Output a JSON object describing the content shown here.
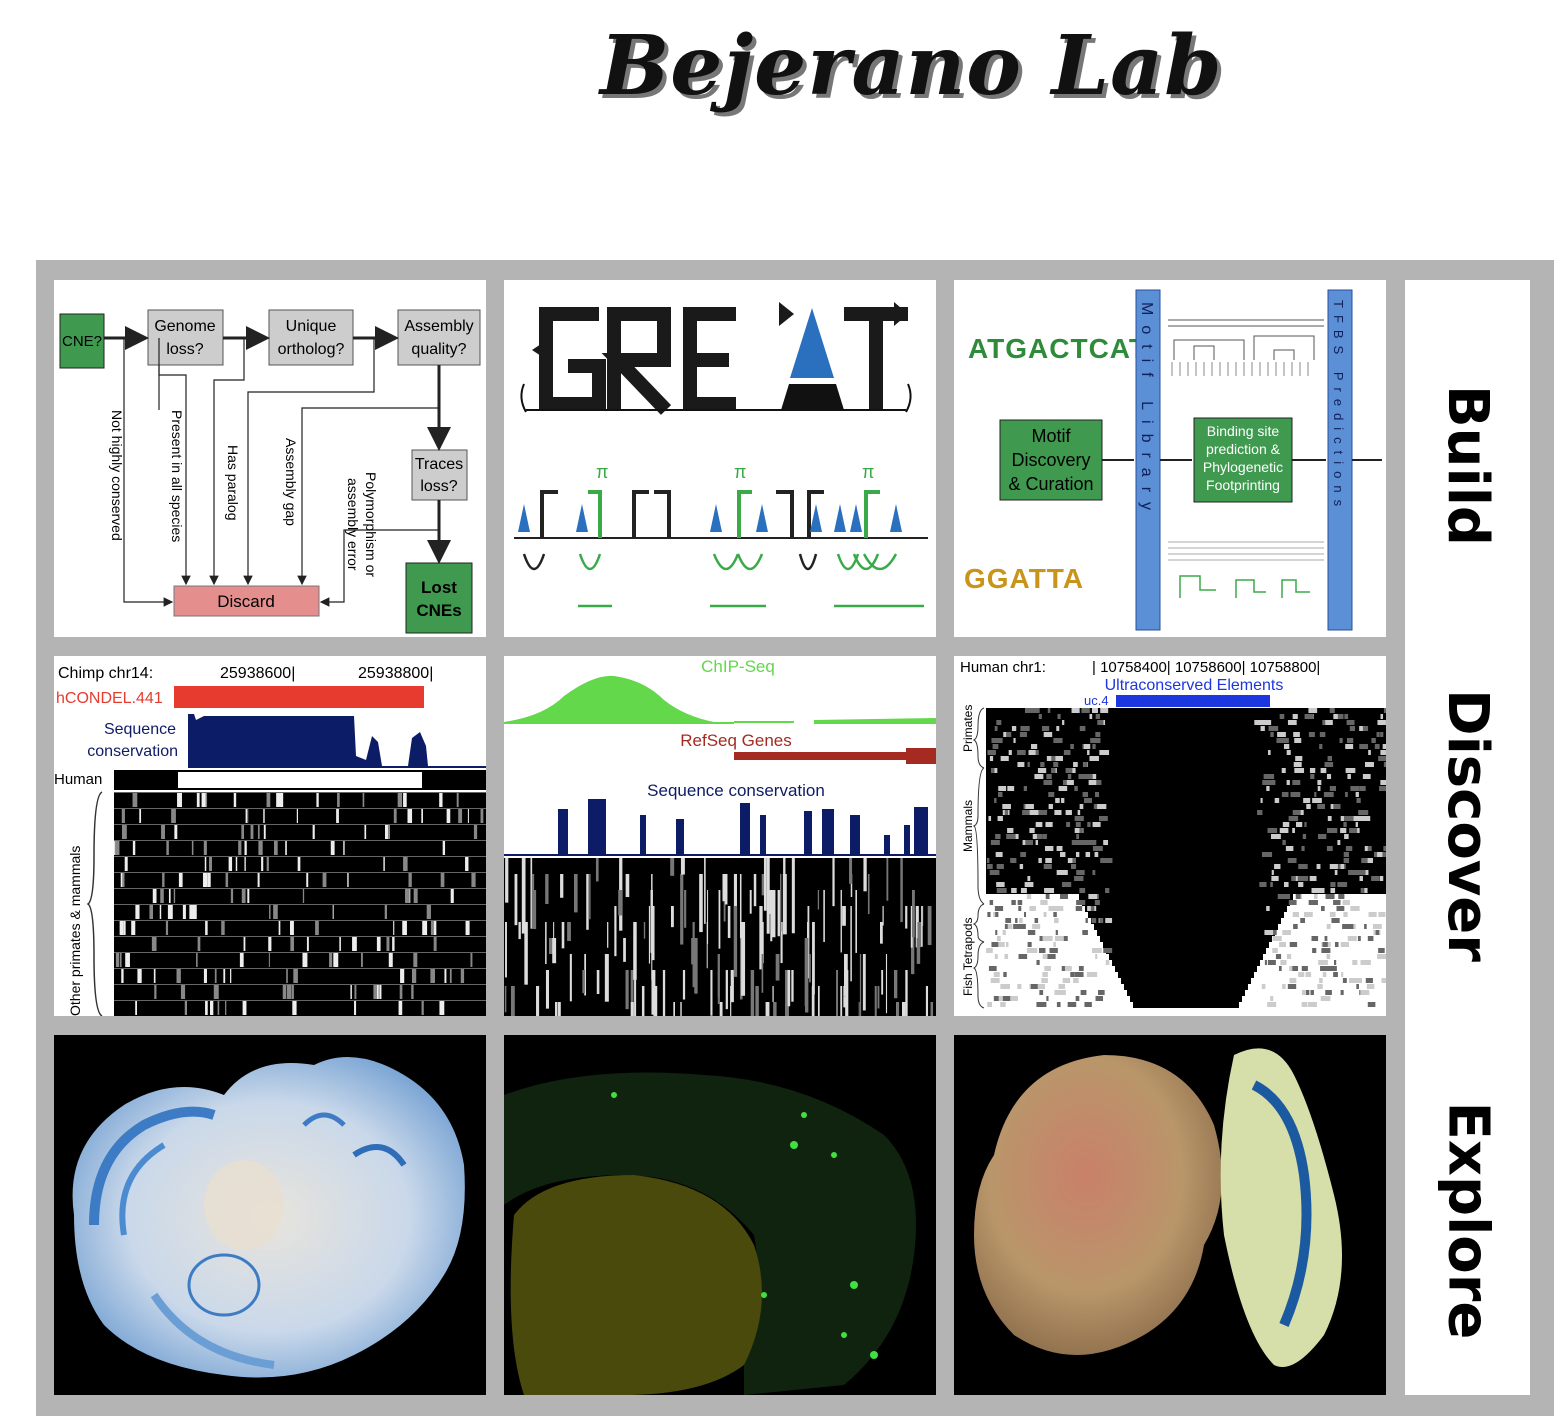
{
  "title": "Bejerano Lab",
  "sections": [
    "Build",
    "Discover",
    "Explore"
  ],
  "flowchart": {
    "cne": "CNE?",
    "genome_loss": [
      "Genome",
      "loss?"
    ],
    "unique_ortholog": [
      "Unique",
      "ortholog?"
    ],
    "assembly_quality": [
      "Assembly",
      "quality?"
    ],
    "traces_loss": [
      "Traces",
      "loss?"
    ],
    "lost_cnes": [
      "Lost",
      "CNEs"
    ],
    "discard": "Discard",
    "not_highly_conserved": "Not highly conserved",
    "present_all_species": "Present in all species",
    "has_paralog": "Has paralog",
    "assembly_gap": "Assembly gap",
    "polymorphism": [
      "Polymorphism or",
      "assembly error"
    ]
  },
  "great": {
    "pi": "π"
  },
  "motif": {
    "seq1": "ATGACTCAT",
    "seq2": "GGATTA",
    "discovery": [
      "Motif",
      "Discovery",
      "& Curation"
    ],
    "binding": [
      "Binding site",
      "prediction &",
      "Phylogenetic",
      "Footprinting"
    ],
    "library": "Motif Library",
    "tfbs": "TFBS Predictions"
  },
  "chimp": {
    "label": "Chimp chr14:",
    "pos1": "25938600|",
    "pos2": "25938800|",
    "condel": "hCONDEL.441",
    "seqcons": [
      "Sequence",
      "conservation"
    ],
    "human": "Human",
    "other": "Other primates & mammals"
  },
  "chip": {
    "chipseq": "ChIP-Seq",
    "refseq": "RefSeq Genes",
    "seqcons": "Sequence conservation"
  },
  "human": {
    "label": "Human chr1:",
    "pos": "| 10758400| 10758600| 10758800|",
    "uce": "Ultraconserved Elements",
    "uc": "uc.4",
    "primates": "Primates",
    "mammals": "Mammals",
    "fish": "Fish Tetrapods"
  },
  "colors": {
    "green_box": "#3f9a4f",
    "gray_box": "#cdcdcd",
    "pink_box": "#e58e8e",
    "blue_bar": "#5b8fd6",
    "red": "#e63b2e",
    "navy": "#0d1c66",
    "chip_green": "#62d84a",
    "refseq": "#a52a22"
  }
}
